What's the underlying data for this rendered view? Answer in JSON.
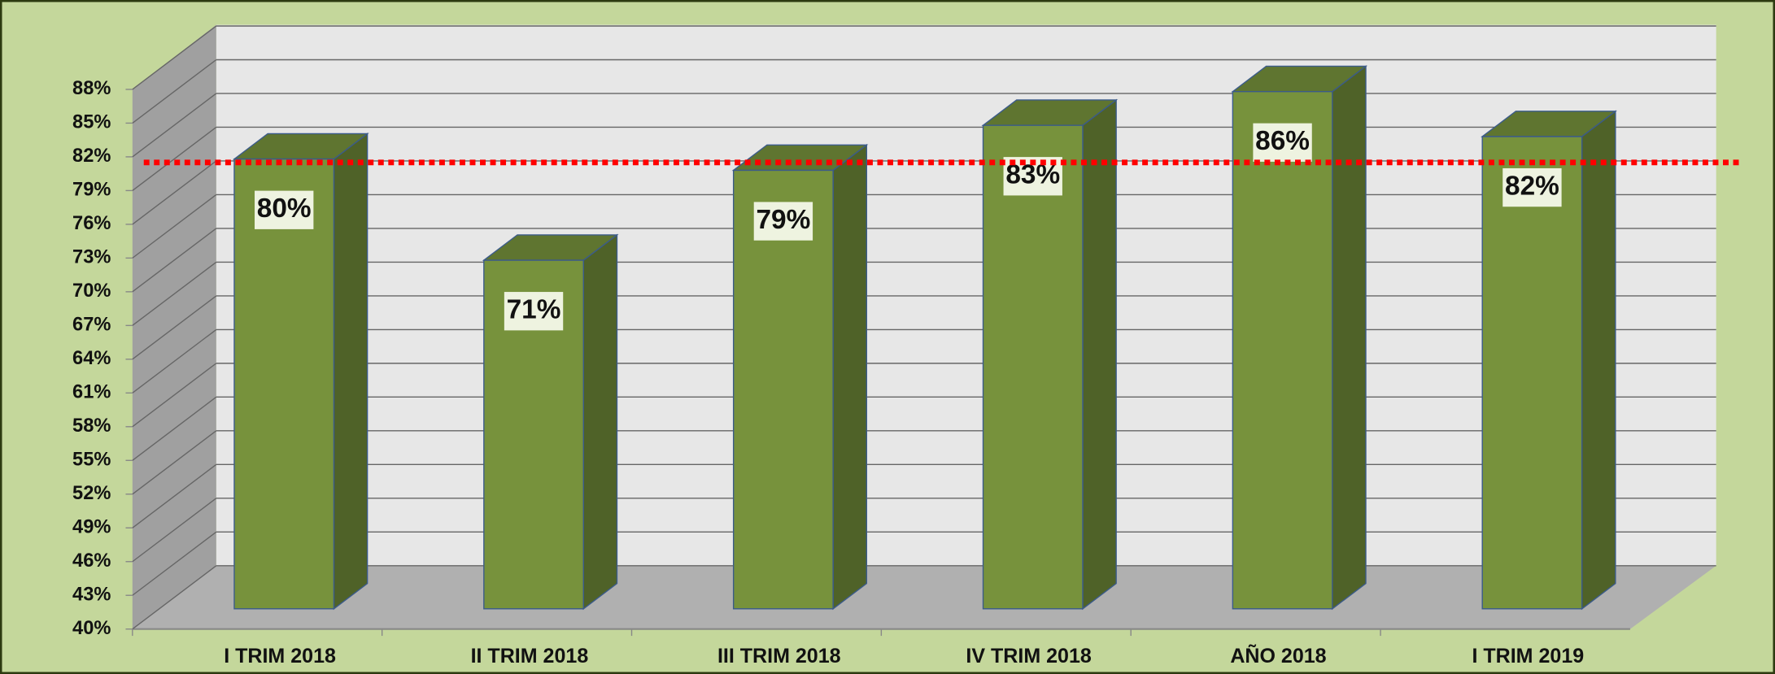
{
  "chart_data": {
    "type": "bar3d",
    "categories": [
      "I TRIM 2018",
      "II TRIM 2018",
      "III TRIM 2018",
      "IV TRIM 2018",
      "AÑO 2018",
      "I TRIM 2019"
    ],
    "values": [
      80,
      71,
      79,
      83,
      86,
      82
    ],
    "value_labels": [
      "80%",
      "71%",
      "79%",
      "83%",
      "86%",
      "82%"
    ],
    "color": "#77923c",
    "ylim": [
      40,
      88
    ],
    "yticks": [
      {
        "value": 40,
        "label": "40%"
      },
      {
        "value": 43,
        "label": "43%"
      },
      {
        "value": 46,
        "label": "46%"
      },
      {
        "value": 49,
        "label": "49%"
      },
      {
        "value": 52,
        "label": "52%"
      },
      {
        "value": 55,
        "label": "55%"
      },
      {
        "value": 58,
        "label": "58%"
      },
      {
        "value": 61,
        "label": "61%"
      },
      {
        "value": 64,
        "label": "64%"
      },
      {
        "value": 67,
        "label": "67%"
      },
      {
        "value": 70,
        "label": "70%"
      },
      {
        "value": 73,
        "label": "73%"
      },
      {
        "value": 76,
        "label": "76%"
      },
      {
        "value": 79,
        "label": "79%"
      },
      {
        "value": 82,
        "label": "82%"
      },
      {
        "value": 85,
        "label": "85%"
      },
      {
        "value": 88,
        "label": "88%"
      }
    ],
    "grid": true,
    "reference_line": {
      "value": 81.5,
      "color": "#ff0000"
    }
  }
}
